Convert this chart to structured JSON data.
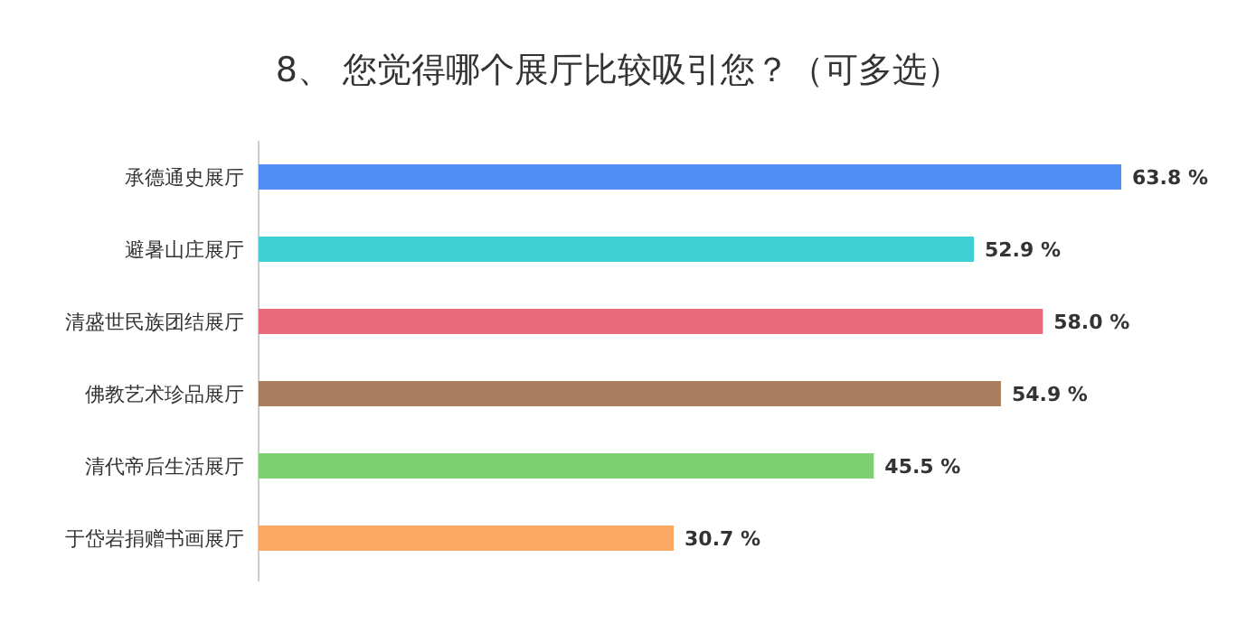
{
  "chart_data": {
    "type": "bar",
    "orientation": "horizontal",
    "title": "8、 您觉得哪个展厅比较吸引您？（可多选）",
    "categories": [
      "承德通史展厅",
      "避暑山庄展厅",
      "清盛世民族团结展厅",
      "佛教艺术珍品展厅",
      "清代帝后生活展厅",
      "于岱岩捐赠书画展厅"
    ],
    "values": [
      63.8,
      52.9,
      58.0,
      54.9,
      45.5,
      30.7
    ],
    "value_labels": [
      "63.8 %",
      "52.9 %",
      "58.0 %",
      "54.9 %",
      "45.5 %",
      "30.7 %"
    ],
    "colors": [
      "#4f8ef2",
      "#3fd0d6",
      "#e96b7b",
      "#a97e5e",
      "#7dd070",
      "#fca865"
    ]
  }
}
